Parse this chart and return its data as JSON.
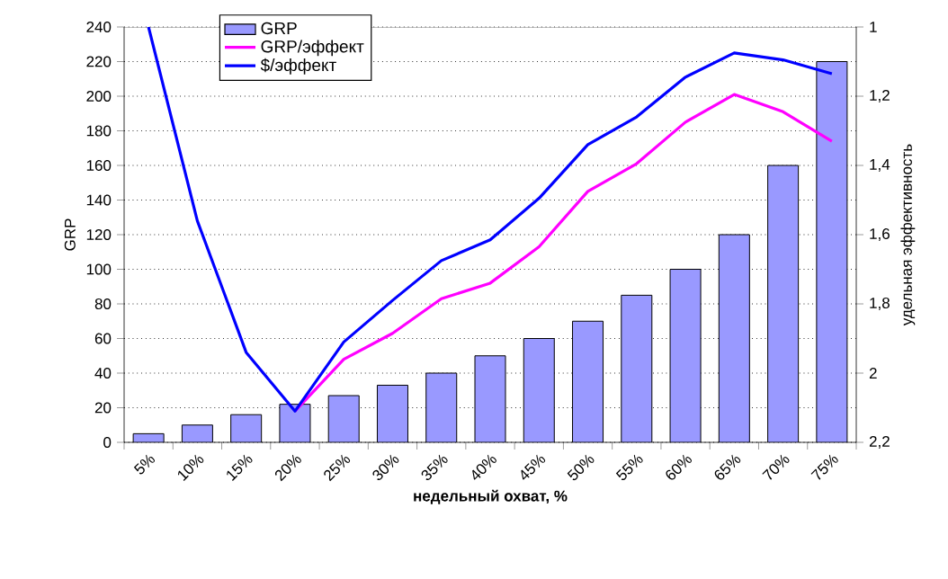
{
  "chart_data": {
    "type": "bar",
    "categories": [
      "5%",
      "10%",
      "15%",
      "20%",
      "25%",
      "30%",
      "35%",
      "40%",
      "45%",
      "50%",
      "55%",
      "60%",
      "65%",
      "70%",
      "75%"
    ],
    "series": [
      {
        "name": "GRP",
        "color": "#9999ff",
        "values": [
          5,
          10,
          16,
          22,
          27,
          33,
          40,
          50,
          60,
          70,
          85,
          100,
          120,
          160,
          220
        ]
      },
      {
        "name": "GRP/эффект",
        "type": "line",
        "axis": "y2",
        "color": "#ff00ff",
        "values": [
          null,
          null,
          null,
          2.11,
          1.96,
          1.885,
          1.785,
          1.74,
          1.635,
          1.475,
          1.395,
          1.275,
          1.195,
          1.245,
          1.33
        ]
      },
      {
        "name": "$/эффект",
        "type": "line",
        "axis": "y2",
        "color": "#0000ff",
        "values": [
          1.0,
          1.56,
          1.94,
          2.11,
          1.91,
          1.79,
          1.675,
          1.615,
          1.495,
          1.34,
          1.26,
          1.145,
          1.075,
          1.095,
          1.135
        ]
      }
    ],
    "ylim": [
      0,
      240
    ],
    "yticks": [
      0,
      20,
      40,
      60,
      80,
      100,
      120,
      140,
      160,
      180,
      200,
      220,
      240
    ],
    "y2lim": [
      2.2,
      1
    ],
    "y2ticks": [
      1,
      {
        "value": 1.2,
        "label": "1,2"
      },
      {
        "value": 1.4,
        "label": "1,4"
      },
      {
        "value": 1.6,
        "label": "1,6"
      },
      {
        "value": 1.8,
        "label": "1,8"
      },
      2,
      {
        "value": 2.2,
        "label": "2,2"
      }
    ],
    "xlabel": "недельный охват, %",
    "ylabel": "GRP",
    "y2label": "удельная эффективность",
    "grid": "y",
    "legend": "top"
  }
}
